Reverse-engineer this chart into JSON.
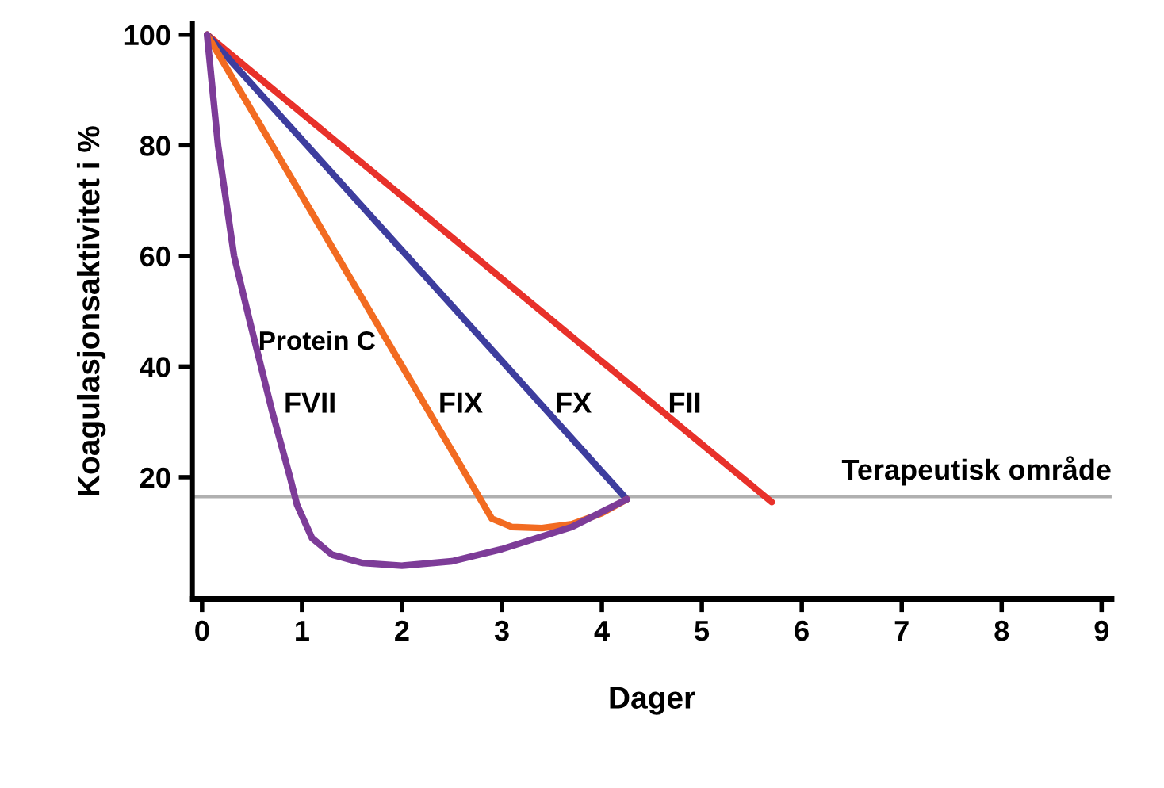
{
  "chart_data": {
    "type": "line",
    "xlabel": "Dager",
    "ylabel": "Koagulasjonsaktivitet i %",
    "xlim": [
      -0.1,
      9.1
    ],
    "ylim": [
      -2,
      102
    ],
    "xticks": [
      0,
      1,
      2,
      3,
      4,
      5,
      6,
      7,
      8,
      9
    ],
    "yticks": [
      20,
      40,
      60,
      80,
      100
    ],
    "grid": false,
    "legend": false,
    "marker": "none",
    "line_style": "solid",
    "series": [
      {
        "name": "FII",
        "color": "#e8312a",
        "x": [
          0.05,
          5.7
        ],
        "values": [
          100,
          15.5
        ]
      },
      {
        "name": "FX",
        "color": "#3d3d9e",
        "x": [
          0.05,
          4.25
        ],
        "values": [
          100,
          16
        ]
      },
      {
        "name": "FIX",
        "color": "#f26b21",
        "x": [
          0.05,
          2.9,
          3.1,
          3.4,
          3.7,
          4.0,
          4.25
        ],
        "values": [
          100,
          12.5,
          11,
          10.8,
          11.5,
          13.5,
          16
        ]
      },
      {
        "name": "FVII",
        "color": "#7d3c98",
        "x": [
          0.05,
          0.16,
          0.32,
          0.48,
          0.7,
          0.88,
          0.95,
          1.1,
          1.3,
          1.6,
          2.0,
          2.5,
          3.0,
          3.7,
          4.25
        ],
        "values": [
          100,
          80,
          60,
          48,
          32,
          20,
          15,
          9,
          6,
          4.5,
          4,
          4.8,
          7,
          11,
          16
        ]
      }
    ],
    "ref_lines": [
      {
        "axis": "y",
        "value": 16.5,
        "color": "#b0b0b0",
        "label": "Terapeutisk område"
      }
    ],
    "annotations": [
      "Protein C"
    ]
  }
}
